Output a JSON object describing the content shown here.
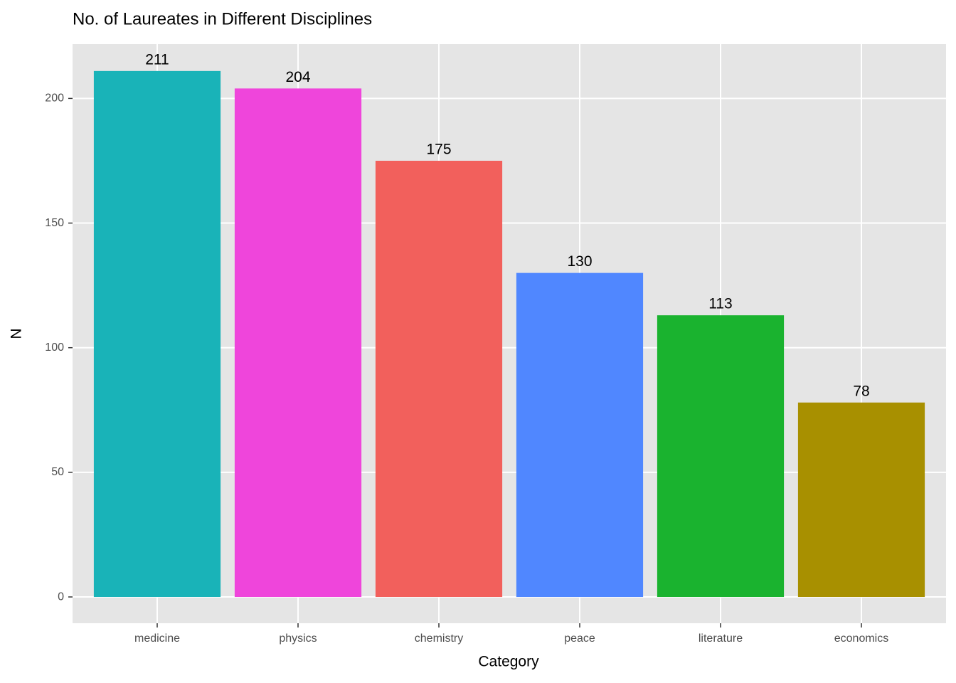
{
  "chart_data": {
    "type": "bar",
    "title": "No. of Laureates in Different Disciplines",
    "x_label": "Category",
    "y_label": "N",
    "categories": [
      "medicine",
      "physics",
      "chemistry",
      "peace",
      "literature",
      "economics"
    ],
    "values": [
      211,
      204,
      175,
      130,
      113,
      78
    ],
    "colors": [
      "#19b3b8",
      "#ef45db",
      "#f2605c",
      "#5087ff",
      "#1ab32f",
      "#a89000"
    ],
    "ylim": [
      -10.55,
      221.8
    ],
    "yticks": [
      0,
      50,
      100,
      150,
      200
    ],
    "grid": true
  }
}
